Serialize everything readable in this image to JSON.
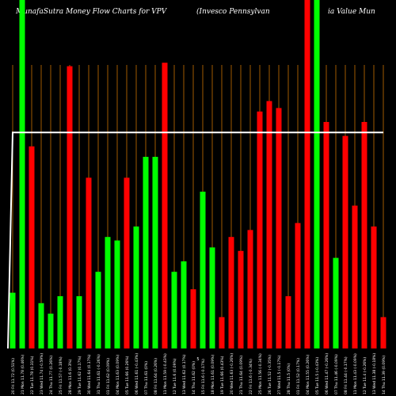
{
  "header": {
    "title_left": "MunafaSutra  Money Flow  Charts for VPV",
    "title_mid": "(Invesco  Pennsylvan",
    "title_right": "ia  Value   Mun"
  },
  "colors": {
    "background": "#000000",
    "up_bar": "#00ff00",
    "down_bar": "#ff0000",
    "line": "#ffffff",
    "grid_line": "#a05a00"
  },
  "chart_data": {
    "type": "bar",
    "title": "MunafaSutra  Money Flow  Charts for VPV (Invesco  Pennsylvania  Value   Mun",
    "grid": "vertical",
    "categories": [
      "20 Fri 11.72 (0.51%)",
      "21 Mon 11.78 (0.46%)",
      "22 Tue 11.78 (0.31%)",
      "23 Wed 11.74 (-0.59%)",
      "24 Thu 11.77 (0.26%)",
      "25 Fri 11.57 (-0.18%)",
      "28 Mon 11.6 (0.3%)",
      "29 Tue 11.62 (0.17%)",
      "30 Wed 11.64 (0.17%)",
      "31 Thu 11.61 (-0.26%)",
      "01 Fri 11.62 (0.09%)",
      "04 Mon 11.63 (0.09%)",
      "05 Tue 11.66 (0.26%)",
      "06 Wed 11.61 (-0.43%)",
      "07 Thu 11.61 (0%)",
      "08 Fri 11.64 (0.26%)",
      "11 Mon 11.59 (-0.43%)",
      "12 Tue 11.6 (0.09%)",
      "13 Wed 11.62 (0.17%)",
      "14 Thu 11.62 (0%)",
      "15 Fri 11.6 (-0.17%)",
      "18 Mon 11.61 (0.09%)",
      "19 Tue 11.66 (0.43%)",
      "20 Wed 11.63 (-0.26%)",
      "21 Thu 11.64 (0.09%)",
      "22 Fri 11.6 (-0.34%)",
      "25 Mon 11.56 (-0.34%)",
      "26 Tue 11.52 (-0.35%)",
      "27 Wed 11.5 (-0.17%)",
      "28 Thu 11.5 (0%)",
      "01 Fri 11.52 (0.17%)",
      "04 Mon 11.55 (0.26%)",
      "05 Tue 11.5 (-0.43%)",
      "06 Wed 11.47 (-0.26%)",
      "07 Thu 11.46 (-0.09%)",
      "08 Fri 11.44 (-0.17%)",
      "11 Mon 11.43 (-0.09%)",
      "12 Tue 11.4 (-0.26%)",
      "13 Wed 11.38 (-0.18%)",
      "14 Thu 11.39 (0.09%)"
    ],
    "values": [
      16,
      100,
      58,
      13,
      10,
      15,
      81,
      15,
      49,
      22,
      32,
      31,
      49,
      35,
      55,
      55,
      82,
      22,
      25,
      17,
      45,
      29,
      9,
      32,
      28,
      34,
      68,
      71,
      69,
      15,
      36,
      100,
      100,
      65,
      26,
      61,
      41,
      65,
      35,
      9
    ],
    "direction": [
      "up",
      "up",
      "down",
      "up",
      "up",
      "up",
      "down",
      "up",
      "down",
      "up",
      "up",
      "up",
      "down",
      "up",
      "up",
      "up",
      "down",
      "up",
      "up",
      "down",
      "up",
      "up",
      "down",
      "down",
      "down",
      "down",
      "down",
      "down",
      "down",
      "down",
      "down",
      "down",
      "up",
      "down",
      "up",
      "down",
      "down",
      "down",
      "down",
      "down"
    ],
    "line": [
      62,
      62,
      62,
      62,
      62,
      62,
      62,
      62,
      62,
      62,
      62,
      62,
      62,
      62,
      62,
      62,
      62,
      62,
      62,
      62,
      62,
      62,
      62,
      62,
      62,
      62,
      62,
      62,
      62,
      62,
      62,
      62,
      62,
      62,
      62,
      62,
      62,
      62,
      62,
      62
    ],
    "ylim": [
      0,
      100
    ],
    "x_marker": "5"
  }
}
